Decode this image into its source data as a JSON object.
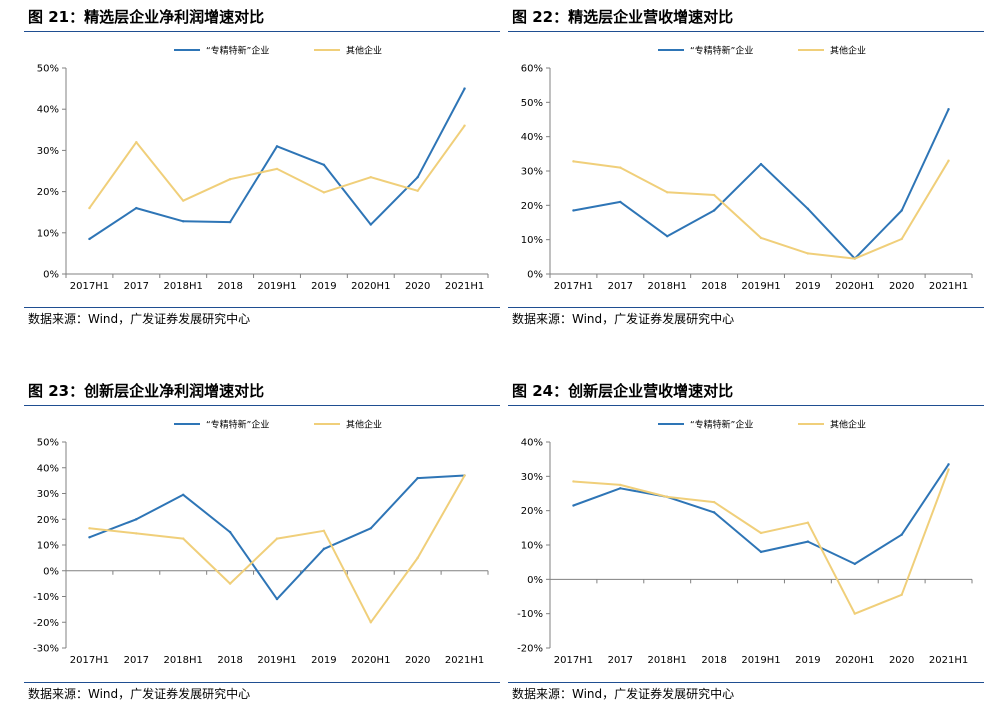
{
  "colors": {
    "series_a": "#2e75b6",
    "series_b": "#f0cf7a",
    "rule": "#1f4e91"
  },
  "source_text": "数据来源：Wind，广发证券发展研究中心",
  "legend": {
    "series_a": "“专精特新”企业",
    "series_b": "其他企业"
  },
  "chart_data": [
    {
      "type": "line",
      "title": "图 21：精选层企业净利润增速对比",
      "categories": [
        "2017H1",
        "2017",
        "2018H1",
        "2018",
        "2019H1",
        "2019",
        "2020H1",
        "2020",
        "2021H1"
      ],
      "y_ticks": [
        "0%",
        "10%",
        "20%",
        "30%",
        "40%",
        "50%"
      ],
      "ylim": [
        0,
        50
      ],
      "legend_position": "top-center",
      "series": [
        {
          "name": "“专精特新”企业",
          "values": [
            8.5,
            16,
            12.8,
            12.6,
            31,
            26.5,
            12,
            23.5,
            45
          ]
        },
        {
          "name": "其他企业",
          "values": [
            16,
            32,
            17.8,
            23,
            25.5,
            19.8,
            23.5,
            20.2,
            36
          ]
        }
      ]
    },
    {
      "type": "line",
      "title": "图 22：精选层企业营收增速对比",
      "categories": [
        "2017H1",
        "2017",
        "2018H1",
        "2018",
        "2019H1",
        "2019",
        "2020H1",
        "2020",
        "2021H1"
      ],
      "y_ticks": [
        "0%",
        "10%",
        "20%",
        "30%",
        "40%",
        "50%",
        "60%"
      ],
      "ylim": [
        0,
        60
      ],
      "legend_position": "top-center",
      "series": [
        {
          "name": "“专精特新”企业",
          "values": [
            18.5,
            21,
            11,
            18.5,
            32,
            19,
            4.5,
            18.5,
            48
          ]
        },
        {
          "name": "其他企业",
          "values": [
            32.8,
            31,
            23.8,
            23,
            10.5,
            6,
            4.5,
            10.2,
            33
          ]
        }
      ]
    },
    {
      "type": "line",
      "title": "图 23：创新层企业净利润增速对比",
      "categories": [
        "2017H1",
        "2017",
        "2018H1",
        "2018",
        "2019H1",
        "2019",
        "2020H1",
        "2020",
        "2021H1"
      ],
      "y_ticks": [
        "-30%",
        "-20%",
        "-10%",
        "0%",
        "10%",
        "20%",
        "30%",
        "40%",
        "50%"
      ],
      "ylim": [
        -30,
        50
      ],
      "legend_position": "top-center",
      "series": [
        {
          "name": "“专精特新”企业",
          "values": [
            13,
            20,
            29.5,
            15,
            -11,
            8.5,
            16.5,
            36,
            37
          ]
        },
        {
          "name": "其他企业",
          "values": [
            16.5,
            14.5,
            12.5,
            -5,
            12.5,
            15.5,
            -20,
            5,
            37
          ]
        }
      ]
    },
    {
      "type": "line",
      "title": "图 24：创新层企业营收增速对比",
      "categories": [
        "2017H1",
        "2017",
        "2018H1",
        "2018",
        "2019H1",
        "2019",
        "2020H1",
        "2020",
        "2021H1"
      ],
      "y_ticks": [
        "-20%",
        "-10%",
        "0%",
        "10%",
        "20%",
        "30%",
        "40%"
      ],
      "ylim": [
        -20,
        40
      ],
      "legend_position": "top-center",
      "series": [
        {
          "name": "“专精特新”企业",
          "values": [
            21.5,
            26.5,
            24,
            19.5,
            8,
            11,
            4.5,
            13,
            33.5
          ]
        },
        {
          "name": "其他企业",
          "values": [
            28.5,
            27.5,
            24,
            22.5,
            13.5,
            16.5,
            -10,
            -4.5,
            32
          ]
        }
      ]
    }
  ]
}
